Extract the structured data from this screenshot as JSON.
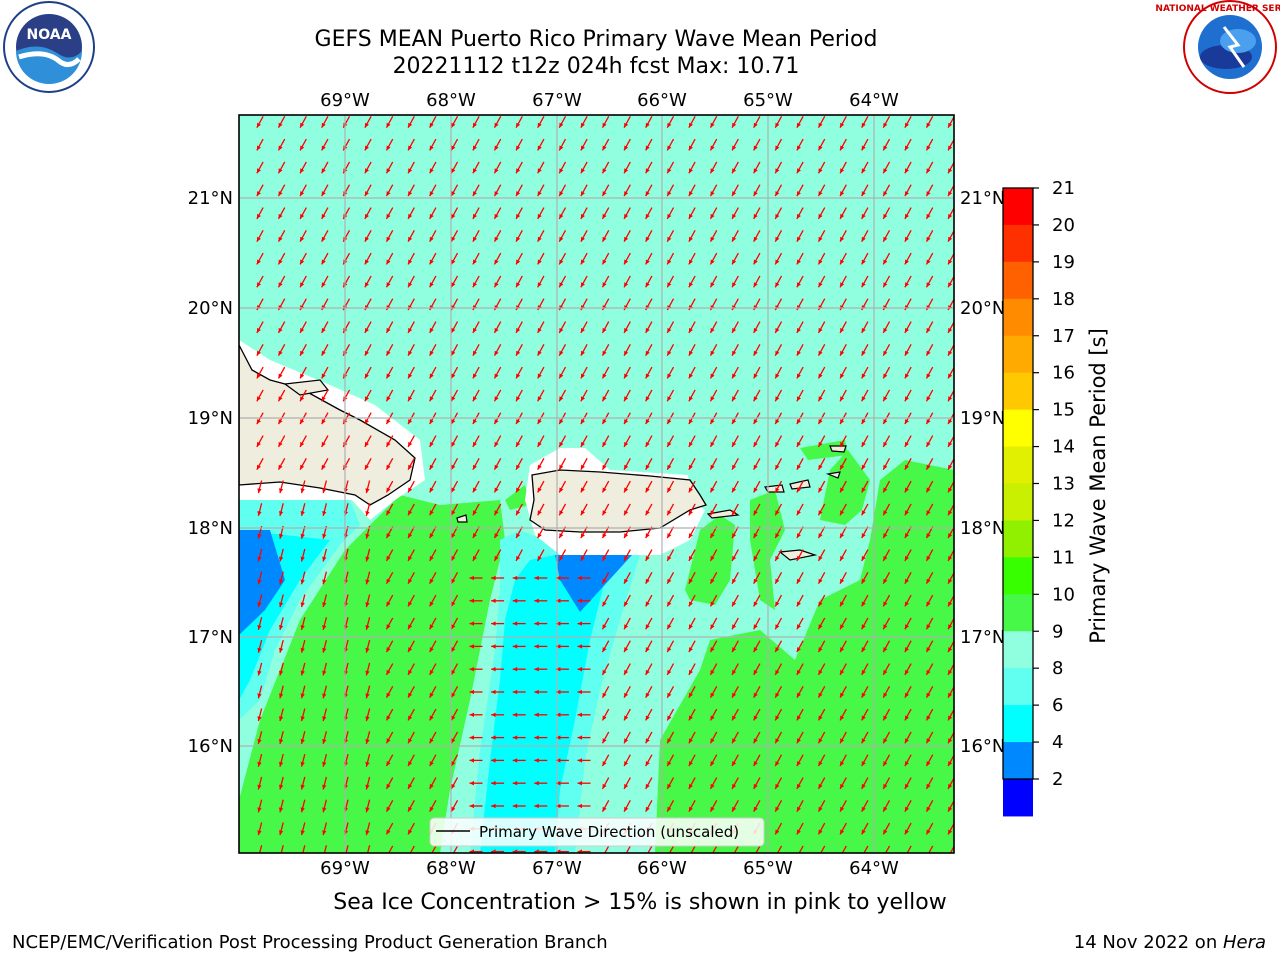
{
  "header": {
    "title_line1": "GEFS MEAN Puerto Rico Primary Wave Mean Period",
    "title_line2": "20221112 t12z 024h fcst   Max: 10.71"
  },
  "logos": {
    "left": "NOAA",
    "right": "NATIONAL WEATHER SERVICE"
  },
  "map": {
    "lon_labels": [
      "69°W",
      "68°W",
      "67°W",
      "66°W",
      "65°W",
      "64°W"
    ],
    "lat_labels": [
      "21°N",
      "20°N",
      "19°N",
      "18°N",
      "17°N",
      "16°N"
    ],
    "legend_label": "Primary Wave Direction (unscaled)",
    "arrow_color": "#ff0000"
  },
  "colorbar": {
    "label": "Primary Wave Mean Period [s]",
    "ticks": [
      "21",
      "20",
      "19",
      "18",
      "17",
      "16",
      "15",
      "14",
      "13",
      "12",
      "11",
      "10",
      "9",
      "8",
      "6",
      "4",
      "2"
    ],
    "colors": [
      "#ff0000",
      "#ff3000",
      "#ff6000",
      "#ff8c00",
      "#ffaa00",
      "#ffc800",
      "#ffff00",
      "#e0f000",
      "#c8f000",
      "#90f000",
      "#38ff00",
      "#48f848",
      "#90ffe0",
      "#60fff0",
      "#00ffff",
      "#0088ff",
      "#0000ff"
    ]
  },
  "subtitle": "Sea Ice Concentration > 15% is shown in pink to yellow",
  "footer": {
    "left": "NCEP/EMC/Verification Post Processing Product Generation Branch",
    "right_prefix": "14 Nov 2022 on ",
    "right_host": "Hera"
  }
}
